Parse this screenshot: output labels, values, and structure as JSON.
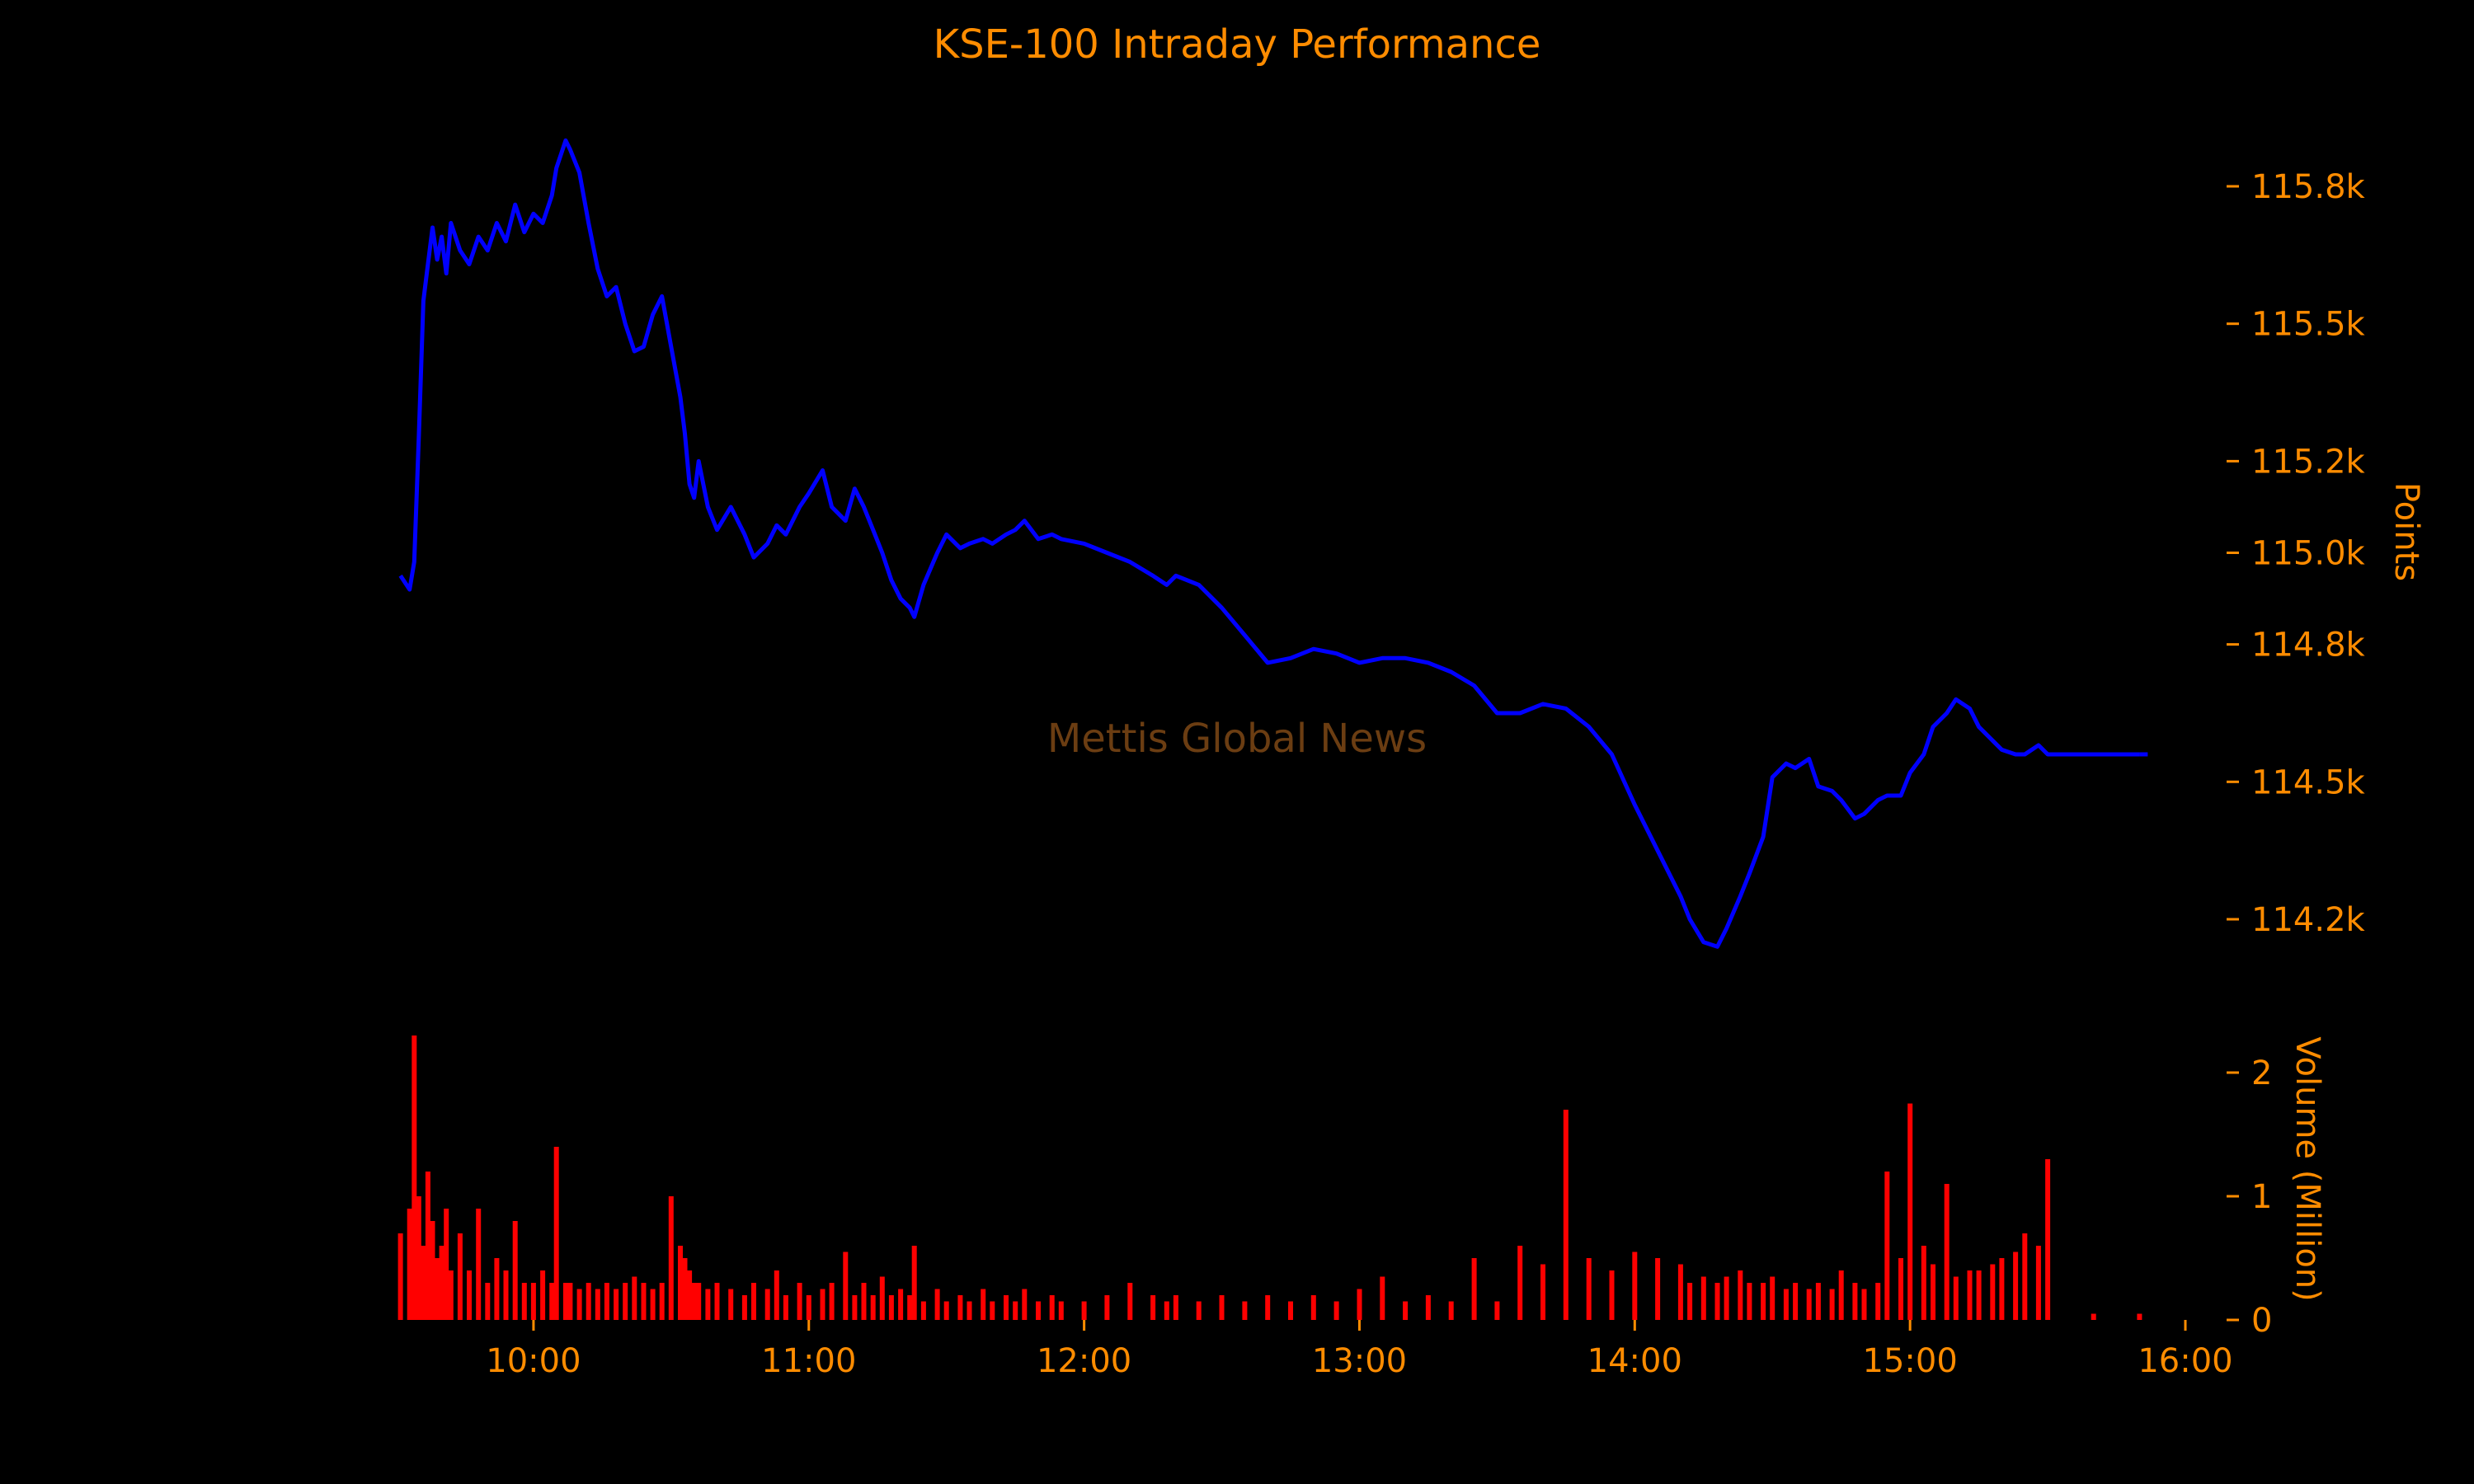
{
  "chart_data": {
    "type": "line",
    "title": "KSE-100 Intraday Performance",
    "watermark": "Mettis Global News",
    "colors": {
      "background": "#000000",
      "text": "#ff8c00",
      "price_line": "#0000ff",
      "volume_bars": "#ff0000",
      "watermark": "#6b3d12"
    },
    "grid": false,
    "x_axis": {
      "range": [
        "09:30",
        "16:00"
      ],
      "ticks": [
        "10:00",
        "11:00",
        "12:00",
        "13:00",
        "14:00",
        "15:00",
        "16:00"
      ]
    },
    "price_panel": {
      "ylabel": "Points",
      "ylim": [
        114000,
        116000
      ],
      "ticks": [
        114200,
        114500,
        114800,
        115000,
        115200,
        115500,
        115800
      ],
      "tick_labels": [
        "114.2k",
        "114.5k",
        "114.8k",
        "115.0k",
        "115.2k",
        "115.5k",
        "115.8k"
      ],
      "series": {
        "x": [
          "09:31",
          "09:33",
          "09:34",
          "09:35",
          "09:36",
          "09:37",
          "09:38",
          "09:39",
          "09:40",
          "09:41",
          "09:42",
          "09:44",
          "09:46",
          "09:48",
          "09:50",
          "09:52",
          "09:54",
          "09:56",
          "09:58",
          "10:00",
          "10:02",
          "10:04",
          "10:05",
          "10:07",
          "10:08",
          "10:10",
          "10:12",
          "10:14",
          "10:16",
          "10:18",
          "10:20",
          "10:22",
          "10:24",
          "10:26",
          "10:28",
          "10:30",
          "10:32",
          "10:33",
          "10:34",
          "10:35",
          "10:36",
          "10:38",
          "10:40",
          "10:43",
          "10:46",
          "10:48",
          "10:51",
          "10:53",
          "10:55",
          "10:58",
          "11:00",
          "11:03",
          "11:05",
          "11:08",
          "11:10",
          "11:12",
          "11:14",
          "11:16",
          "11:18",
          "11:20",
          "11:22",
          "11:23",
          "11:25",
          "11:28",
          "11:30",
          "11:33",
          "11:35",
          "11:38",
          "11:40",
          "11:43",
          "11:45",
          "11:47",
          "11:50",
          "11:53",
          "11:55",
          "12:00",
          "12:05",
          "12:10",
          "12:15",
          "12:18",
          "12:20",
          "12:25",
          "12:30",
          "12:35",
          "12:40",
          "12:45",
          "12:50",
          "12:55",
          "13:00",
          "13:05",
          "13:10",
          "13:15",
          "13:20",
          "13:25",
          "13:30",
          "13:35",
          "13:40",
          "13:45",
          "13:50",
          "13:55",
          "14:00",
          "14:05",
          "14:10",
          "14:12",
          "14:15",
          "14:18",
          "14:20",
          "14:23",
          "14:25",
          "14:28",
          "14:30",
          "14:33",
          "14:35",
          "14:38",
          "14:40",
          "14:43",
          "14:45",
          "14:48",
          "14:50",
          "14:53",
          "14:55",
          "14:58",
          "15:00",
          "15:03",
          "15:05",
          "15:08",
          "15:10",
          "15:13",
          "15:15",
          "15:18",
          "15:20",
          "15:23",
          "15:25",
          "15:28",
          "15:30",
          "15:40",
          "15:50"
        ],
        "y": [
          114950,
          114920,
          114980,
          115250,
          115550,
          115630,
          115710,
          115640,
          115690,
          115610,
          115720,
          115660,
          115630,
          115690,
          115660,
          115720,
          115680,
          115760,
          115700,
          115740,
          115720,
          115780,
          115840,
          115900,
          115880,
          115830,
          115720,
          115620,
          115560,
          115580,
          115500,
          115440,
          115450,
          115520,
          115560,
          115450,
          115340,
          115260,
          115150,
          115120,
          115200,
          115100,
          115050,
          115100,
          115040,
          114990,
          115020,
          115060,
          115040,
          115100,
          115130,
          115180,
          115100,
          115070,
          115140,
          115100,
          115050,
          115000,
          114940,
          114900,
          114880,
          114860,
          114930,
          115000,
          115040,
          115010,
          115020,
          115030,
          115020,
          115040,
          115050,
          115070,
          115030,
          115040,
          115030,
          115020,
          115000,
          114980,
          114950,
          114930,
          114950,
          114930,
          114880,
          114820,
          114760,
          114770,
          114790,
          114780,
          114760,
          114770,
          114770,
          114760,
          114740,
          114710,
          114650,
          114650,
          114670,
          114660,
          114620,
          114560,
          114450,
          114350,
          114250,
          114200,
          114150,
          114140,
          114180,
          114250,
          114300,
          114380,
          114510,
          114540,
          114530,
          114550,
          114490,
          114480,
          114460,
          114420,
          114430,
          114460,
          114470,
          114470,
          114520,
          114560,
          114620,
          114650,
          114680,
          114660,
          114620,
          114590,
          114570,
          114560,
          114560,
          114580,
          114560,
          114560,
          114560
        ]
      }
    },
    "volume_panel": {
      "type": "bar",
      "ylabel": "Volume (Million)",
      "ylim": [
        0,
        2.4
      ],
      "ticks": [
        0,
        1,
        2
      ],
      "tick_labels": [
        "0",
        "1",
        "2"
      ],
      "series": {
        "x": [
          "09:31",
          "09:33",
          "09:34",
          "09:35",
          "09:36",
          "09:37",
          "09:38",
          "09:39",
          "09:40",
          "09:41",
          "09:42",
          "09:44",
          "09:46",
          "09:48",
          "09:50",
          "09:52",
          "09:54",
          "09:56",
          "09:58",
          "10:00",
          "10:02",
          "10:04",
          "10:05",
          "10:07",
          "10:08",
          "10:10",
          "10:12",
          "10:14",
          "10:16",
          "10:18",
          "10:20",
          "10:22",
          "10:24",
          "10:26",
          "10:28",
          "10:30",
          "10:32",
          "10:33",
          "10:34",
          "10:35",
          "10:36",
          "10:38",
          "10:40",
          "10:43",
          "10:46",
          "10:48",
          "10:51",
          "10:53",
          "10:55",
          "10:58",
          "11:00",
          "11:03",
          "11:05",
          "11:08",
          "11:10",
          "11:12",
          "11:14",
          "11:16",
          "11:18",
          "11:20",
          "11:22",
          "11:23",
          "11:25",
          "11:28",
          "11:30",
          "11:33",
          "11:35",
          "11:38",
          "11:40",
          "11:43",
          "11:45",
          "11:47",
          "11:50",
          "11:53",
          "11:55",
          "12:00",
          "12:05",
          "12:10",
          "12:15",
          "12:18",
          "12:20",
          "12:25",
          "12:30",
          "12:35",
          "12:40",
          "12:45",
          "12:50",
          "12:55",
          "13:00",
          "13:05",
          "13:10",
          "13:15",
          "13:20",
          "13:25",
          "13:30",
          "13:35",
          "13:40",
          "13:45",
          "13:50",
          "13:55",
          "14:00",
          "14:05",
          "14:10",
          "14:12",
          "14:15",
          "14:18",
          "14:20",
          "14:23",
          "14:25",
          "14:28",
          "14:30",
          "14:33",
          "14:35",
          "14:38",
          "14:40",
          "14:43",
          "14:45",
          "14:48",
          "14:50",
          "14:53",
          "14:55",
          "14:58",
          "15:00",
          "15:03",
          "15:05",
          "15:08",
          "15:10",
          "15:13",
          "15:15",
          "15:18",
          "15:20",
          "15:23",
          "15:25",
          "15:28",
          "15:30",
          "15:40",
          "15:50"
        ],
        "values": [
          0.7,
          0.9,
          2.3,
          1.0,
          0.6,
          1.2,
          0.8,
          0.5,
          0.6,
          0.9,
          0.4,
          0.7,
          0.4,
          0.9,
          0.3,
          0.5,
          0.4,
          0.8,
          0.3,
          0.3,
          0.4,
          0.3,
          1.4,
          0.3,
          0.3,
          0.25,
          0.3,
          0.25,
          0.3,
          0.25,
          0.3,
          0.35,
          0.3,
          0.25,
          0.3,
          1.0,
          0.6,
          0.5,
          0.4,
          0.3,
          0.3,
          0.25,
          0.3,
          0.25,
          0.2,
          0.3,
          0.25,
          0.4,
          0.2,
          0.3,
          0.2,
          0.25,
          0.3,
          0.55,
          0.2,
          0.3,
          0.2,
          0.35,
          0.2,
          0.25,
          0.2,
          0.6,
          0.15,
          0.25,
          0.15,
          0.2,
          0.15,
          0.25,
          0.15,
          0.2,
          0.15,
          0.25,
          0.15,
          0.2,
          0.15,
          0.15,
          0.2,
          0.3,
          0.2,
          0.15,
          0.2,
          0.15,
          0.2,
          0.15,
          0.2,
          0.15,
          0.2,
          0.15,
          0.25,
          0.35,
          0.15,
          0.2,
          0.15,
          0.5,
          0.15,
          0.6,
          0.45,
          1.7,
          0.5,
          0.4,
          0.55,
          0.5,
          0.45,
          0.3,
          0.35,
          0.3,
          0.35,
          0.4,
          0.3,
          0.3,
          0.35,
          0.25,
          0.3,
          0.25,
          0.3,
          0.25,
          0.4,
          0.3,
          0.25,
          0.3,
          1.2,
          0.5,
          1.75,
          0.6,
          0.45,
          1.1,
          0.35,
          0.4,
          0.4,
          0.45,
          0.5,
          0.55,
          0.7,
          0.6,
          1.3,
          0.05,
          0.05
        ]
      }
    }
  }
}
